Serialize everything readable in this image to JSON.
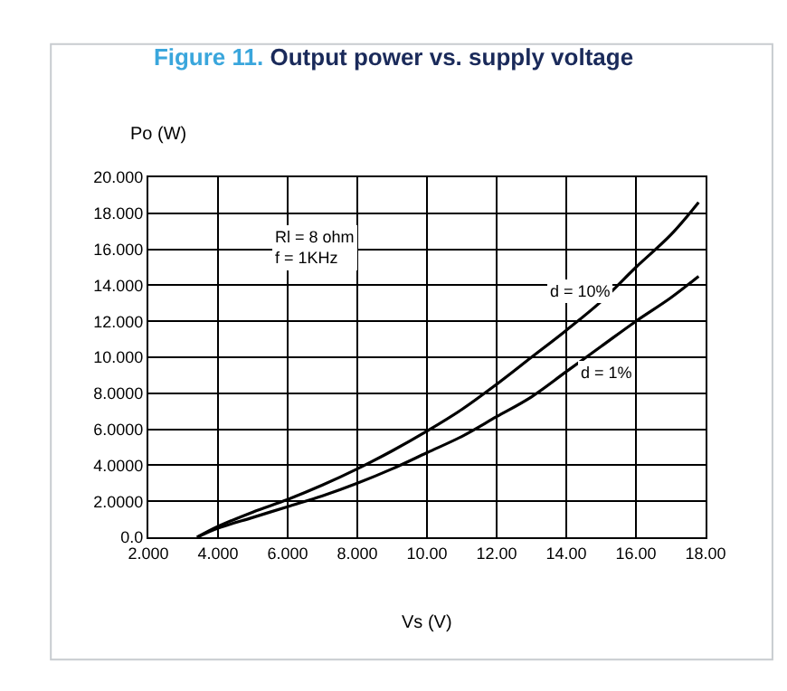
{
  "chart_data": {
    "type": "line",
    "title": "Figure 11. Output power vs. supply voltage",
    "xlabel": "Vs (V)",
    "ylabel": "Po (W)",
    "series": [
      {
        "color": "#000000",
        "x": [
          3.4,
          4,
          5,
          6,
          7,
          8,
          9,
          10,
          11,
          12,
          13,
          14,
          15,
          16,
          17,
          17.8
        ],
        "values": [
          0,
          0.6,
          1.4,
          2.1,
          2.9,
          3.8,
          4.8,
          5.9,
          7.1,
          8.5,
          10.0,
          11.5,
          13.1,
          15.0,
          16.8,
          18.6
        ]
      },
      {
        "color": "#000000",
        "x": [
          3.4,
          4,
          5,
          6,
          7,
          8,
          9,
          10,
          11,
          12,
          13,
          14,
          15,
          16,
          17,
          17.8
        ],
        "values": [
          0,
          0.5,
          1.1,
          1.7,
          2.3,
          3.0,
          3.8,
          4.7,
          5.6,
          6.7,
          7.8,
          9.2,
          10.6,
          12.0,
          13.3,
          14.5
        ]
      }
    ],
    "xlim": [
      2,
      18
    ],
    "ylim": [
      0,
      20
    ],
    "xticks": [
      {
        "value": 2,
        "label": "2.000"
      },
      {
        "value": 4,
        "label": "4.000"
      },
      {
        "value": 6,
        "label": "6.000"
      },
      {
        "value": 8,
        "label": "8.000"
      },
      {
        "value": 10,
        "label": "10.00"
      },
      {
        "value": 12,
        "label": "12.00"
      },
      {
        "value": 14,
        "label": "14.00"
      },
      {
        "value": 16,
        "label": "16.00"
      },
      {
        "value": 18,
        "label": "18.00"
      }
    ],
    "yticks": [
      {
        "value": 0,
        "label": "0.0"
      },
      {
        "value": 2,
        "label": "2.0000"
      },
      {
        "value": 4,
        "label": "4.0000"
      },
      {
        "value": 6,
        "label": "6.0000"
      },
      {
        "value": 8,
        "label": "8.0000"
      },
      {
        "value": 10,
        "label": "10.000"
      },
      {
        "value": 12,
        "label": "12.000"
      },
      {
        "value": 14,
        "label": "14.000"
      },
      {
        "value": 16,
        "label": "16.000"
      },
      {
        "value": 18,
        "label": "18.000"
      },
      {
        "value": 20,
        "label": "20.000"
      }
    ],
    "annotations": [
      "Rl = 8 ohm\nf = 1KHz",
      "d = 10%",
      "d = 1%"
    ],
    "grid": true,
    "marker": "none",
    "line_style": "solid"
  }
}
